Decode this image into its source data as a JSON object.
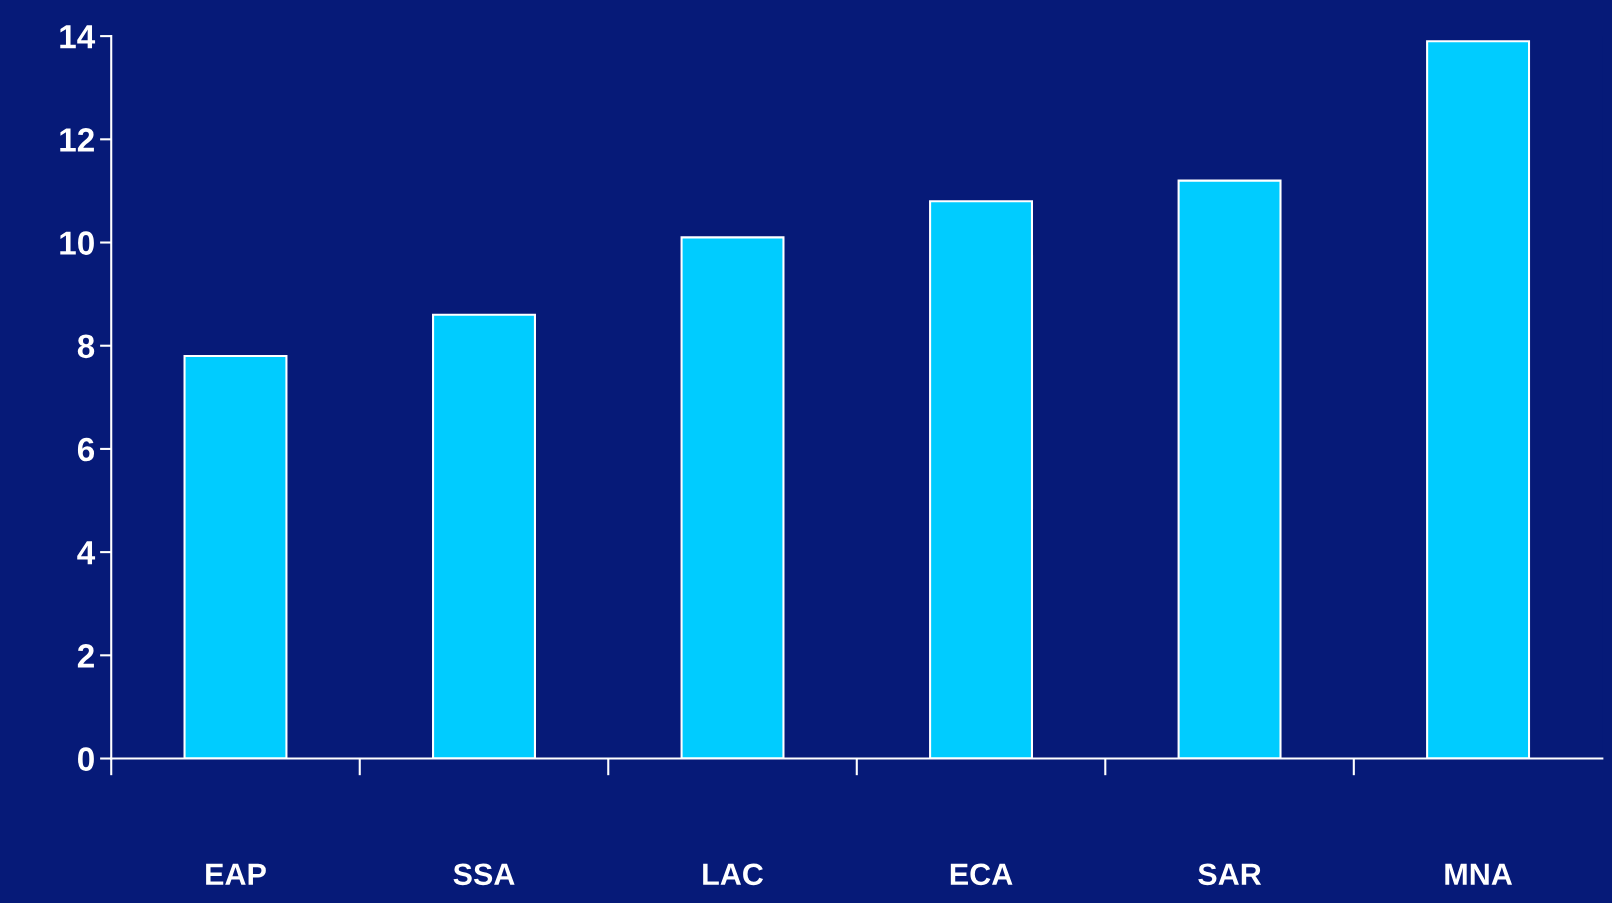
{
  "chart_data": {
    "type": "bar",
    "categories": [
      "EAP",
      "SSA",
      "LAC",
      "ECA",
      "SAR",
      "MNA"
    ],
    "values": [
      7.8,
      8.6,
      10.1,
      10.8,
      11.2,
      13.9
    ],
    "color": "#00ccff",
    "ylim": [
      0,
      14
    ],
    "yticks": [
      0,
      2,
      4,
      6,
      8,
      10,
      12,
      14
    ],
    "grid": false
  }
}
